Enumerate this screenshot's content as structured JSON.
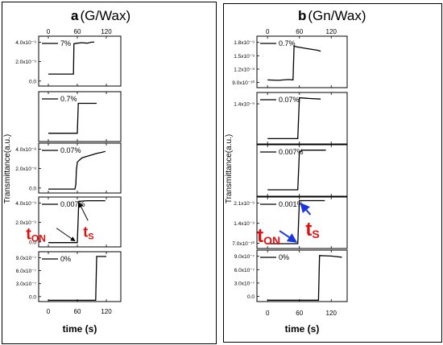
{
  "colors": {
    "line": "#000000",
    "accent_red": "#e01010",
    "arrow_blue": "#1a36e0",
    "arrow_black": "#000000"
  },
  "chart_data": [
    {
      "type": "line",
      "panel_letter": "a",
      "panel_material": "(G/Wax)",
      "xlabel": "time (s)",
      "ylabel": "Transmittance(a.u.)",
      "x_ticks": [
        "0",
        "60",
        "120"
      ],
      "xlim": [
        -20,
        150
      ],
      "subplots": [
        {
          "legend": "7%",
          "ylim": [
            -1e-09,
            4e-09
          ],
          "y_ticks": [
            "0.0",
            "2.0x10⁻⁹",
            "4.0x10⁻⁹"
          ],
          "x": [
            0,
            25,
            50,
            52,
            53,
            60,
            70,
            80,
            90,
            95
          ],
          "y": [
            2e-10,
            2e-10,
            2e-10,
            2e-10,
            3.25e-09,
            3.3e-09,
            3.35e-09,
            3.3e-09,
            3.4e-09,
            3.4e-09
          ]
        },
        {
          "legend": "0.7%",
          "ylim": [
            -1e-08,
            5e-08
          ],
          "y_ticks": [],
          "x": [
            0,
            30,
            58,
            60,
            62,
            80,
            100
          ],
          "y": [
            0.0,
            0.0,
            0.0,
            0.0,
            3.6e-08,
            3.6e-08,
            3.6e-08
          ]
        },
        {
          "legend": "0.07%",
          "ylim": [
            -7e-09,
            4.4e-08
          ],
          "y_ticks": [
            "0.0",
            "2.0x10⁻⁸",
            "4.0x10⁻⁸"
          ],
          "x": [
            0,
            30,
            55,
            57,
            58,
            60,
            65,
            70,
            80,
            90,
            100,
            110,
            118
          ],
          "y": [
            -3e-09,
            -3e-09,
            -3e-09,
            2e-09,
            1.6e-08,
            2.45e-08,
            2.7e-08,
            2.9e-08,
            3.05e-08,
            3.2e-08,
            3.35e-08,
            3.45e-08,
            3.55e-08
          ]
        },
        {
          "legend": "0.007%",
          "ylim": [
            -3e-10,
            4.4e-09
          ],
          "y_ticks": [
            "0.0",
            "2.0x10⁻⁹",
            "4.0x10⁻⁹"
          ],
          "x": [
            0,
            30,
            58,
            60,
            63,
            80,
            100,
            118
          ],
          "y": [
            1e-10,
            1e-10,
            1e-10,
            1e-10,
            4e-09,
            4.05e-09,
            4.05e-09,
            4.05e-09
          ],
          "annotations": [
            {
              "text": "t",
              "sub": "ON",
              "target_x": 57,
              "target_y": 1e-10
            },
            {
              "text": "t",
              "sub": "S",
              "target_x": 62,
              "target_y": 4e-09
            }
          ]
        },
        {
          "legend": "0%",
          "ylim": [
            -2.5e-08,
            9.2e-07
          ],
          "y_ticks": [
            "0.0",
            "3.0x10⁻⁷",
            "6.0x10⁻⁷",
            "9.0x10⁻⁷"
          ],
          "x": [
            0,
            50,
            97,
            98,
            100,
            110,
            120
          ],
          "y": [
            0.0,
            0.0,
            0.0,
            0.0,
            8.3e-07,
            8.3e-07,
            8.3e-07
          ]
        }
      ]
    },
    {
      "type": "line",
      "panel_letter": "b",
      "panel_material": "(Gn/Wax)",
      "xlabel": "time (s)",
      "ylabel": "Transmittance(a.u.)",
      "x_ticks": [
        "0",
        "60",
        "120"
      ],
      "xlim": [
        -20,
        150
      ],
      "subplots": [
        {
          "legend": "0.7%",
          "ylim": [
            7.5e-10,
            1.95e-09
          ],
          "y_ticks": [
            "9.0x10⁻¹⁰",
            "1.2x10⁻⁹",
            "1.5x10⁻⁹",
            "1.8x10⁻⁹"
          ],
          "x": [
            0,
            20,
            40,
            48,
            50,
            55,
            65,
            75,
            85,
            95,
            100
          ],
          "y": [
            9.3e-10,
            9.2e-10,
            9.4e-10,
            9.3e-10,
            1.72e-09,
            1.7e-09,
            1.68e-09,
            1.66e-09,
            1.64e-09,
            1.62e-09,
            1.6e-09
          ]
        },
        {
          "legend": "0.07%",
          "ylim": [
            -2e-10,
            1.75e-09
          ],
          "y_ticks": [
            "1.4x10⁻⁹"
          ],
          "x": [
            0,
            30,
            55,
            57,
            60,
            80,
            100
          ],
          "y": [
            0.0,
            0.0,
            0.0,
            0.0,
            1.55e-09,
            1.52e-09,
            1.5e-09
          ]
        },
        {
          "legend": "0.007%",
          "ylim": [
            -3e-10,
            2.1e-09
          ],
          "y_ticks": [],
          "x": [
            0,
            30,
            55,
            57,
            60,
            65,
            80,
            100,
            110
          ],
          "y": [
            0.0,
            0.0,
            0.0,
            0.0,
            1.75e-09,
            1.85e-09,
            1.85e-09,
            1.85e-09,
            1.85e-09
          ]
        },
        {
          "legend": "0.001%",
          "ylim": [
            1e-10,
            2.25e-09
          ],
          "y_ticks": [
            "7.0x10⁻¹⁰",
            "1.4x10⁻⁹",
            "2.1x10⁻⁹"
          ],
          "x": [
            0,
            30,
            55,
            57,
            60,
            80,
            100,
            108
          ],
          "y": [
            3e-10,
            3e-10,
            3e-10,
            3e-10,
            2.1e-09,
            2.1e-09,
            2.1e-09,
            2.1e-09
          ],
          "annotations": [
            {
              "text": "t",
              "sub": "ON",
              "target_x": 56,
              "target_y": 3e-10
            },
            {
              "text": "t",
              "sub": "S",
              "target_x": 61,
              "target_y": 2.05e-09
            }
          ]
        },
        {
          "legend": "0%",
          "ylim": [
            -2.5e-08,
            9.2e-07
          ],
          "y_ticks": [
            "0.0",
            "3.0x10⁻⁷",
            "6.0x10⁻⁷",
            "9.0x10⁻⁷"
          ],
          "x": [
            0,
            50,
            95,
            96,
            98,
            110,
            120,
            130,
            140
          ],
          "y": [
            0.0,
            0.0,
            0.0,
            0.0,
            8.2e-07,
            8.15e-07,
            8.1e-07,
            8e-07,
            7.9e-07
          ]
        }
      ]
    }
  ]
}
